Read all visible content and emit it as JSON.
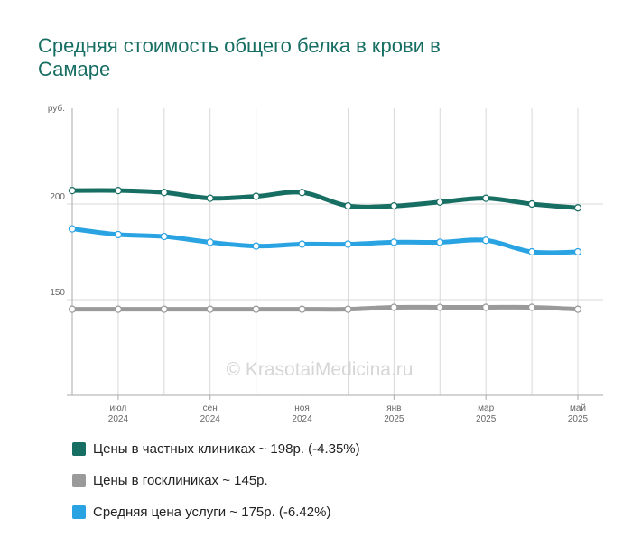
{
  "chart_data": {
    "type": "line",
    "title": "Средняя стоимость общего белка в крови в Самаре",
    "y_label": "руб.",
    "watermark": "© KrasotaiMedicina.ru",
    "categories": [
      null,
      "июл",
      null,
      "сен",
      null,
      "ноя",
      null,
      "янв",
      null,
      "мар",
      null,
      "май"
    ],
    "years": [
      null,
      "2024",
      null,
      "2024",
      null,
      "2024",
      null,
      "2025",
      null,
      "2025",
      null,
      "2025"
    ],
    "ylim": [
      100,
      250
    ],
    "yticks": [
      150,
      200
    ],
    "grid": true,
    "series": [
      {
        "name": "Цены в частных клиниках ~ 198р. (-4.35%)",
        "color": "#176e63",
        "values": [
          207,
          207,
          206,
          203,
          204,
          206,
          199,
          199,
          201,
          203,
          200,
          198
        ]
      },
      {
        "name": "Цены в госклиниках ~ 145р.",
        "color": "#9a9a9a",
        "values": [
          145,
          145,
          145,
          145,
          145,
          145,
          145,
          146,
          146,
          146,
          146,
          145
        ]
      },
      {
        "name": "Средняя цена услуги ~ 175р. (-6.42%)",
        "color": "#2aa3e2",
        "values": [
          187,
          184,
          183,
          180,
          178,
          179,
          179,
          180,
          180,
          181,
          175,
          175
        ]
      }
    ]
  }
}
